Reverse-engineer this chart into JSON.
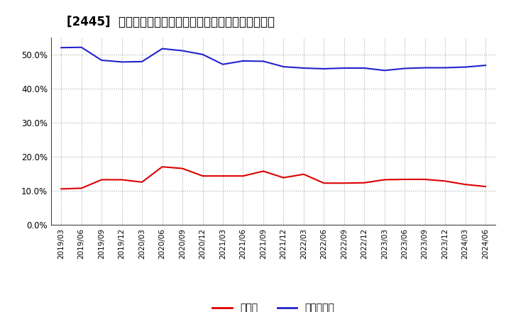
{
  "title": "[2445]  現預金、有利子負債の総資産に対する比率の推移",
  "x_labels": [
    "2019/03",
    "2019/06",
    "2019/09",
    "2019/12",
    "2020/03",
    "2020/06",
    "2020/09",
    "2020/12",
    "2021/03",
    "2021/06",
    "2021/09",
    "2021/12",
    "2022/03",
    "2022/06",
    "2022/09",
    "2022/12",
    "2023/03",
    "2023/06",
    "2023/09",
    "2023/12",
    "2024/03",
    "2024/06"
  ],
  "cash": [
    0.105,
    0.107,
    0.132,
    0.132,
    0.125,
    0.17,
    0.165,
    0.143,
    0.143,
    0.143,
    0.157,
    0.138,
    0.148,
    0.122,
    0.122,
    0.123,
    0.132,
    0.133,
    0.133,
    0.128,
    0.118,
    0.112
  ],
  "debt": [
    0.52,
    0.521,
    0.483,
    0.478,
    0.479,
    0.517,
    0.511,
    0.5,
    0.471,
    0.481,
    0.48,
    0.464,
    0.46,
    0.458,
    0.46,
    0.46,
    0.453,
    0.459,
    0.461,
    0.461,
    0.463,
    0.468
  ],
  "cash_color": "#dd0000",
  "debt_color": "#2222cc",
  "bg_color": "#ffffff",
  "plot_bg_color": "#ffffff",
  "grid_color": "#aaaaaa",
  "ylim": [
    0.0,
    0.55
  ],
  "yticks": [
    0.0,
    0.1,
    0.2,
    0.3,
    0.4,
    0.5
  ],
  "legend_cash": "現預金",
  "legend_debt": "有利子負債",
  "title_fontsize": 12,
  "legend_fontsize": 10,
  "tick_fontsize": 7.5,
  "ytick_fontsize": 8.5
}
